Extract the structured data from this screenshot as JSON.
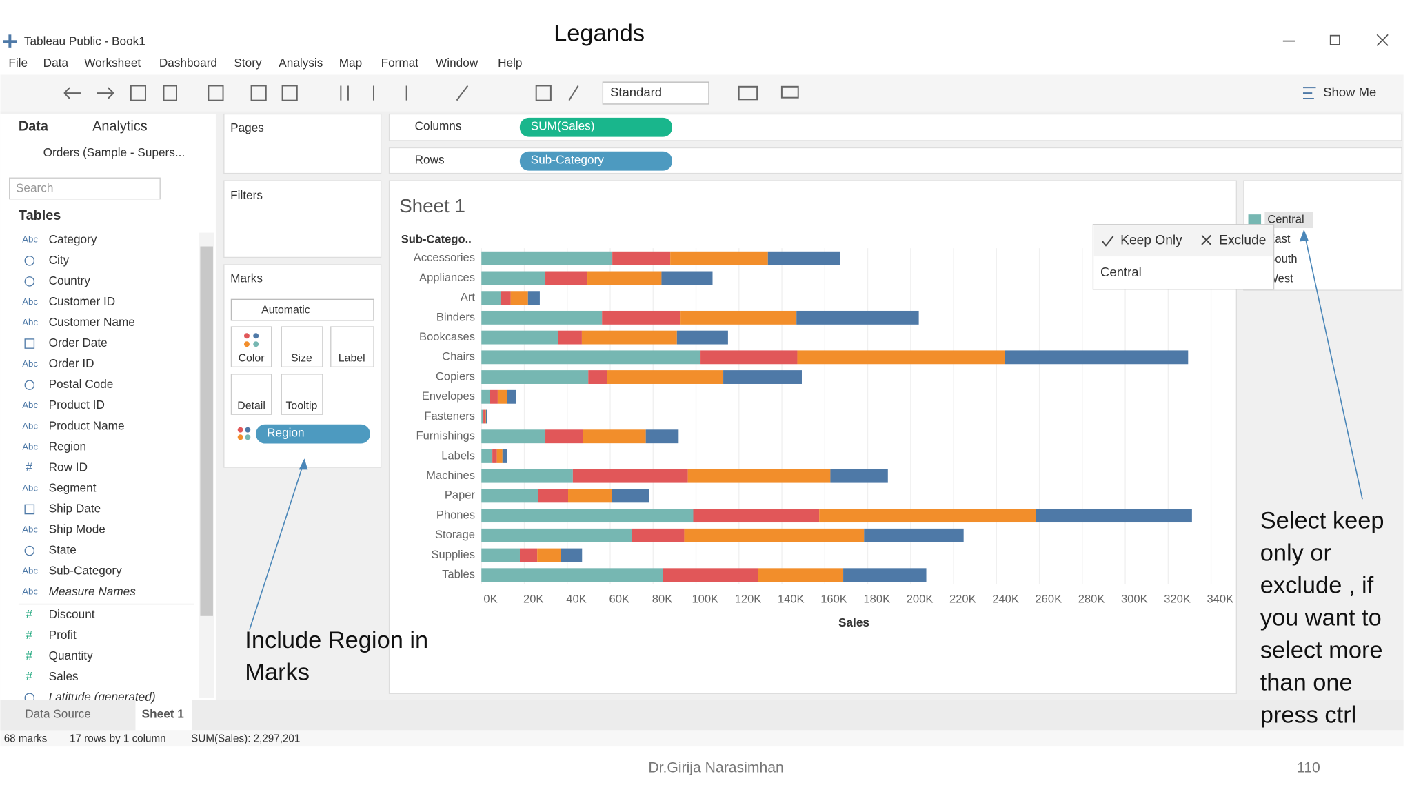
{
  "window": {
    "title": "Tableau Public - Book1",
    "slide_title": "Legands"
  },
  "menu": [
    "File",
    "Data",
    "Worksheet",
    "Dashboard",
    "Story",
    "Analysis",
    "Map",
    "Format",
    "Window",
    "Help"
  ],
  "toolbar": {
    "view_size": "Standard",
    "show_me": "Show Me"
  },
  "data_pane": {
    "tabs": [
      "Data",
      "Analytics"
    ],
    "source": "Orders (Sample - Supers...",
    "search": "Search",
    "tables_heading": "Tables",
    "dimensions": [
      {
        "icon": "Abc",
        "name": "Category"
      },
      {
        "icon": "geo",
        "name": "City"
      },
      {
        "icon": "geo",
        "name": "Country"
      },
      {
        "icon": "Abc",
        "name": "Customer ID"
      },
      {
        "icon": "Abc",
        "name": "Customer Name"
      },
      {
        "icon": "date",
        "name": "Order Date"
      },
      {
        "icon": "Abc",
        "name": "Order ID"
      },
      {
        "icon": "geo",
        "name": "Postal Code"
      },
      {
        "icon": "Abc",
        "name": "Product ID"
      },
      {
        "icon": "Abc",
        "name": "Product Name"
      },
      {
        "icon": "Abc",
        "name": "Region"
      },
      {
        "icon": "#",
        "name": "Row ID"
      },
      {
        "icon": "Abc",
        "name": "Segment"
      },
      {
        "icon": "date",
        "name": "Ship Date"
      },
      {
        "icon": "Abc",
        "name": "Ship Mode"
      },
      {
        "icon": "geo",
        "name": "State"
      },
      {
        "icon": "Abc",
        "name": "Sub-Category"
      },
      {
        "icon": "Abc",
        "name": "Measure Names",
        "italic": true
      }
    ],
    "measures": [
      {
        "icon": "#",
        "name": "Discount"
      },
      {
        "icon": "#",
        "name": "Profit"
      },
      {
        "icon": "#",
        "name": "Quantity"
      },
      {
        "icon": "#",
        "name": "Sales"
      },
      {
        "icon": "geo",
        "name": "Latitude (generated)",
        "italic": true
      }
    ]
  },
  "shelves": {
    "pages": "Pages",
    "filters": "Filters",
    "marks": "Marks",
    "mark_type": "Automatic",
    "mark_buttons": [
      "Color",
      "Size",
      "Label",
      "Detail",
      "Tooltip"
    ],
    "marks_pill": "Region",
    "columns": "Columns",
    "columns_pill": "SUM(Sales)",
    "rows": "Rows",
    "rows_pill": "Sub-Category"
  },
  "sheet_title": "Sheet 1",
  "chart_data": {
    "type": "stacked_bar_horizontal",
    "y_header": "Sub-Catego..",
    "x_label": "Sales",
    "categories": [
      "Accessories",
      "Appliances",
      "Art",
      "Binders",
      "Bookcases",
      "Chairs",
      "Copiers",
      "Envelopes",
      "Fasteners",
      "Furnishings",
      "Labels",
      "Machines",
      "Paper",
      "Phones",
      "Storage",
      "Supplies",
      "Tables"
    ],
    "series": [
      {
        "name": "Central",
        "color": "#76b7b2",
        "values": [
          61000,
          29800,
          8900,
          56200,
          35700,
          102100,
          49800,
          3800,
          900,
          29800,
          5100,
          42600,
          26400,
          98700,
          70200,
          17900,
          84700
        ]
      },
      {
        "name": "East",
        "color": "#e15759",
        "values": [
          27000,
          19600,
          4700,
          36600,
          11100,
          45100,
          8900,
          3800,
          800,
          17400,
          2100,
          53600,
          14000,
          58700,
          24300,
          8100,
          44300
        ]
      },
      {
        "name": "South",
        "color": "#f28e2b",
        "values": [
          45500,
          34500,
          8100,
          54000,
          44300,
          96600,
          54000,
          4300,
          400,
          29400,
          2600,
          66400,
          20400,
          100900,
          83800,
          11100,
          39600
        ]
      },
      {
        "name": "West",
        "color": "#4e79a7",
        "values": [
          33600,
          23800,
          5500,
          57000,
          23800,
          85500,
          36600,
          4300,
          500,
          15300,
          2100,
          26800,
          17400,
          72800,
          46400,
          9800,
          38700
        ]
      }
    ],
    "xlim": [
      0,
      345000
    ],
    "xticks": [
      {
        "value": 0,
        "label": "0K"
      },
      {
        "value": 20000,
        "label": "20K"
      },
      {
        "value": 40000,
        "label": "40K"
      },
      {
        "value": 60000,
        "label": "60K"
      },
      {
        "value": 80000,
        "label": "80K"
      },
      {
        "value": 100000,
        "label": "100K"
      },
      {
        "value": 120000,
        "label": "120K"
      },
      {
        "value": 140000,
        "label": "140K"
      },
      {
        "value": 160000,
        "label": "160K"
      },
      {
        "value": 180000,
        "label": "180K"
      },
      {
        "value": 200000,
        "label": "200K"
      },
      {
        "value": 220000,
        "label": "220K"
      },
      {
        "value": 240000,
        "label": "240K"
      },
      {
        "value": 260000,
        "label": "260K"
      },
      {
        "value": 280000,
        "label": "280K"
      },
      {
        "value": 300000,
        "label": "300K"
      },
      {
        "value": 320000,
        "label": "320K"
      },
      {
        "value": 340000,
        "label": "340K"
      }
    ],
    "grid": true
  },
  "popup": {
    "keep_only": "Keep Only",
    "exclude": "Exclude",
    "selection": "Central"
  },
  "annotations": {
    "left": [
      "Include Region in",
      "Marks"
    ],
    "right": [
      "Select keep",
      "only or",
      "exclude , if",
      "you want to",
      "select more",
      "than one",
      "press ctrl"
    ]
  },
  "bottom_tabs": [
    "Data Source",
    "Sheet 1"
  ],
  "status": [
    "68 marks",
    "17 rows by 1 column",
    "SUM(Sales): 2,297,201"
  ],
  "footer": {
    "author": "Dr.Girija Narasimhan",
    "page": "110"
  }
}
